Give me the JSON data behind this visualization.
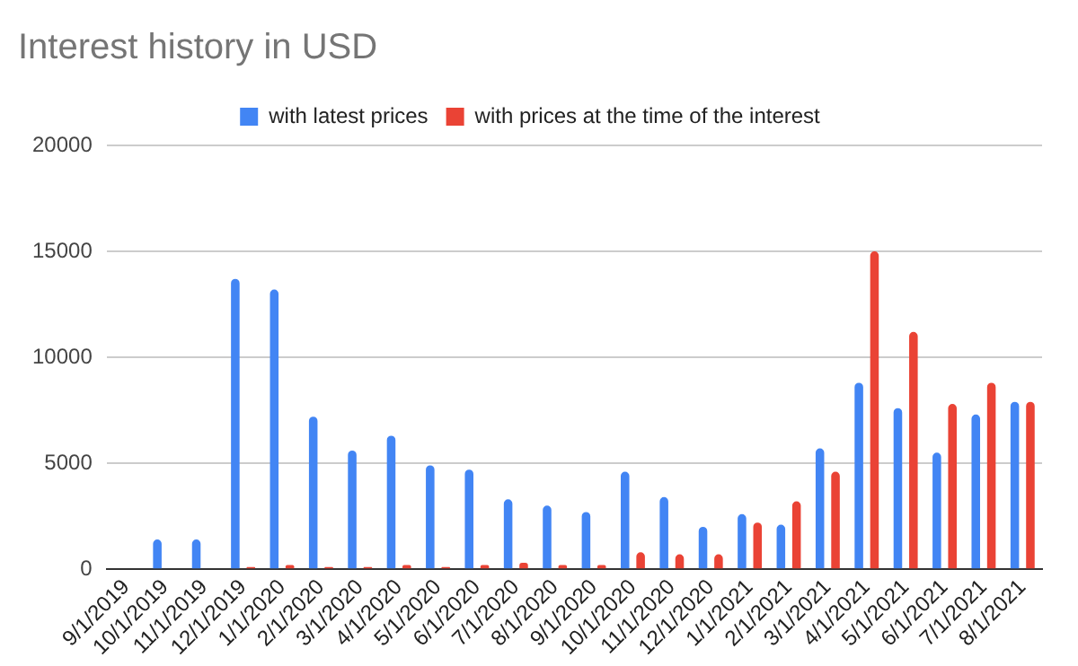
{
  "chart_data": {
    "type": "bar",
    "title": "Interest history in USD",
    "categories": [
      "9/1/2019",
      "10/1/2019",
      "11/1/2019",
      "12/1/2019",
      "1/1/2020",
      "2/1/2020",
      "3/1/2020",
      "4/1/2020",
      "5/1/2020",
      "6/1/2020",
      "7/1/2020",
      "8/1/2020",
      "9/1/2020",
      "10/1/2020",
      "11/1/2020",
      "12/1/2020",
      "1/1/2021",
      "2/1/2021",
      "3/1/2021",
      "4/1/2021",
      "5/1/2021",
      "6/1/2021",
      "7/1/2021",
      "8/1/2021"
    ],
    "series": [
      {
        "name": "with latest prices",
        "color": "#4285f4",
        "values": [
          0,
          1400,
          1400,
          13700,
          13200,
          7200,
          5600,
          6300,
          4900,
          4700,
          3300,
          3000,
          2700,
          4600,
          3400,
          2000,
          2600,
          2100,
          5700,
          8800,
          7600,
          5500,
          7300,
          7900
        ]
      },
      {
        "name": "with prices at the time of the interest",
        "color": "#ea4335",
        "values": [
          0,
          0,
          0,
          100,
          200,
          100,
          100,
          200,
          100,
          200,
          300,
          200,
          200,
          800,
          700,
          700,
          2200,
          3200,
          4600,
          15000,
          11200,
          7800,
          8800,
          7900
        ]
      }
    ],
    "ylim": [
      0,
      20000
    ],
    "yticks": [
      0,
      5000,
      10000,
      15000,
      20000
    ],
    "grid": "y",
    "legend": "top"
  }
}
